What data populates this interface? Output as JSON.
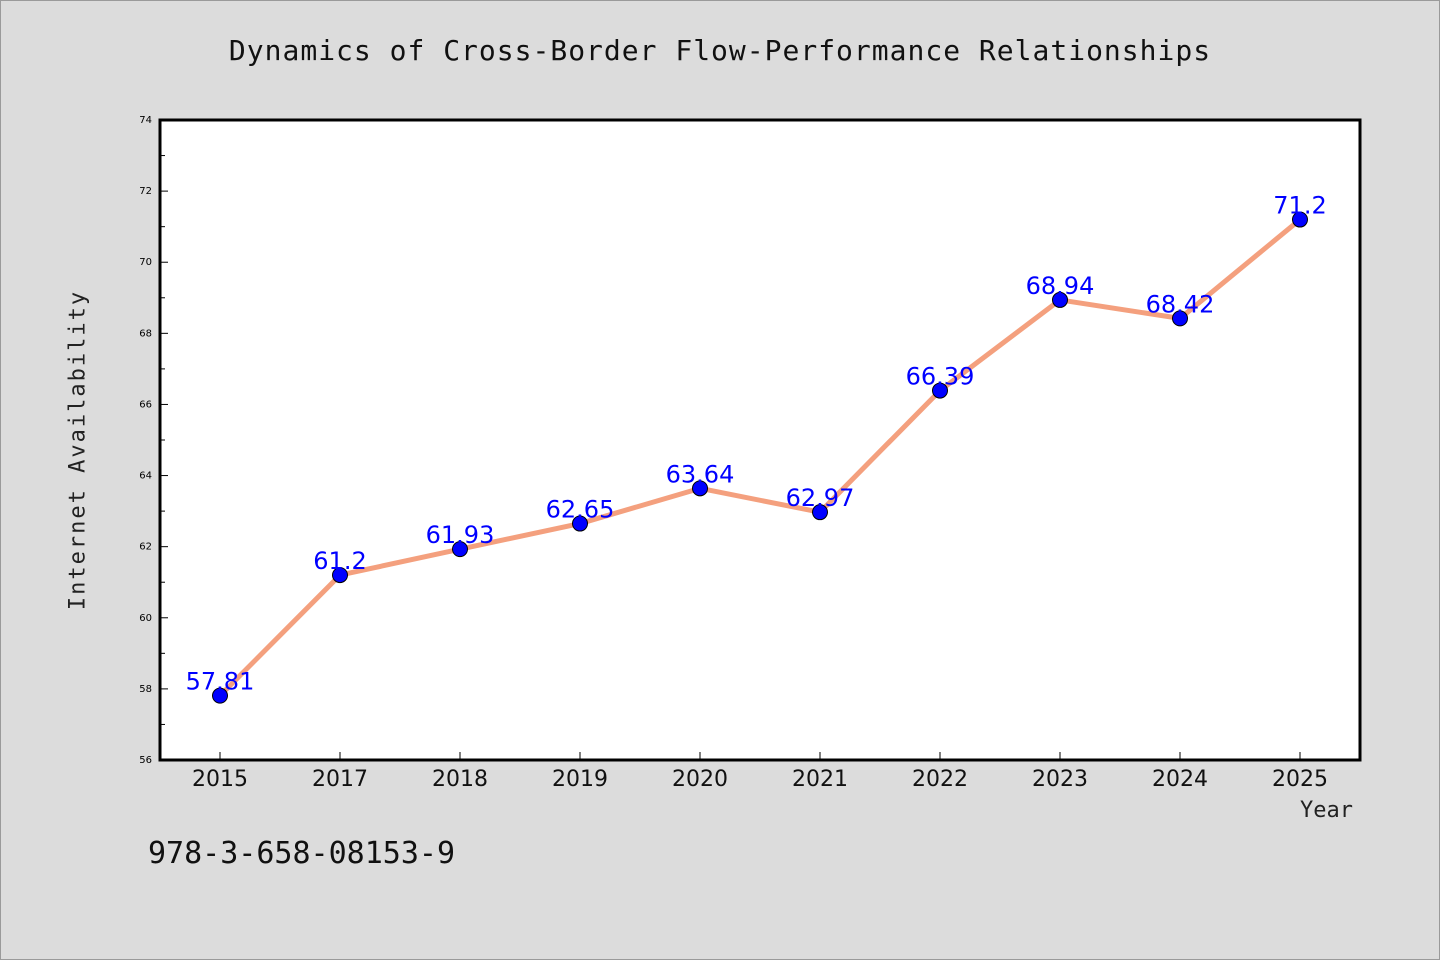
{
  "chart_data": {
    "type": "line",
    "title": "Dynamics of Cross-Border Flow-Performance Relationships",
    "xlabel": "Year",
    "ylabel": "Internet Availability",
    "categories": [
      "2015",
      "2017",
      "2018",
      "2019",
      "2020",
      "2021",
      "2022",
      "2023",
      "2024",
      "2025"
    ],
    "values": [
      57.81,
      61.2,
      61.93,
      62.65,
      63.64,
      62.97,
      66.39,
      68.94,
      68.42,
      71.2
    ],
    "data_labels": [
      "57.81",
      "61.2",
      "61.93",
      "62.65",
      "63.64",
      "62.97",
      "66.39",
      "68.94",
      "68.42",
      "71.2"
    ],
    "yticks": [
      "56",
      "58",
      "60",
      "62",
      "64",
      "66",
      "68",
      "70",
      "72",
      "74"
    ],
    "ylim": [
      56,
      74
    ],
    "grid": false,
    "line_color": "#f4a07e",
    "marker_color": "#0000ff",
    "label_color": "#0000ff"
  },
  "footnote": "978-3-658-08153-9"
}
